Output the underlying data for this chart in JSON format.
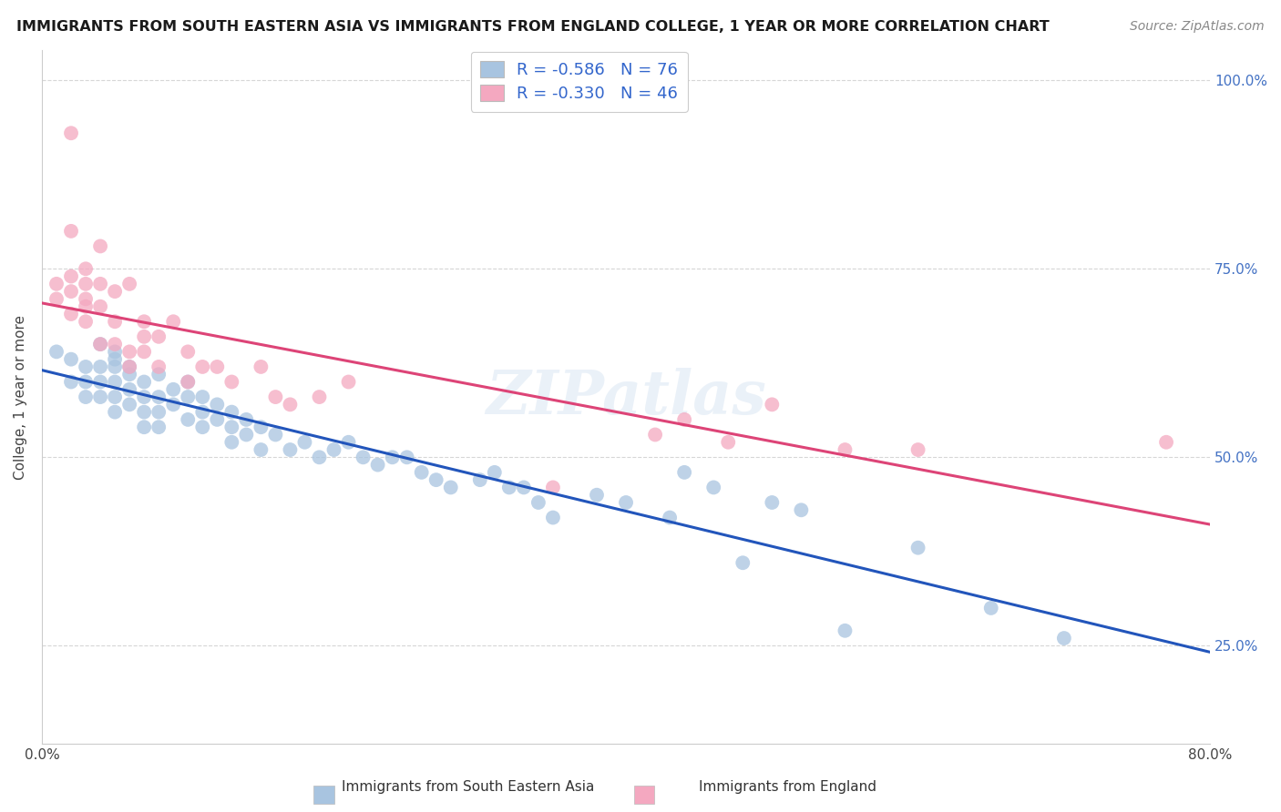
{
  "title": "IMMIGRANTS FROM SOUTH EASTERN ASIA VS IMMIGRANTS FROM ENGLAND COLLEGE, 1 YEAR OR MORE CORRELATION CHART",
  "source": "Source: ZipAtlas.com",
  "ylabel": "College, 1 year or more",
  "blue_R": -0.586,
  "blue_N": 76,
  "pink_R": -0.33,
  "pink_N": 46,
  "blue_color": "#a8c4e0",
  "pink_color": "#f4a8c0",
  "blue_line_color": "#2255bb",
  "pink_line_color": "#dd4477",
  "legend_label_blue": "Immigrants from South Eastern Asia",
  "legend_label_pink": "Immigrants from England",
  "blue_scatter_x": [
    0.01,
    0.02,
    0.02,
    0.03,
    0.03,
    0.03,
    0.04,
    0.04,
    0.04,
    0.04,
    0.05,
    0.05,
    0.05,
    0.05,
    0.05,
    0.05,
    0.06,
    0.06,
    0.06,
    0.06,
    0.07,
    0.07,
    0.07,
    0.07,
    0.08,
    0.08,
    0.08,
    0.08,
    0.09,
    0.09,
    0.1,
    0.1,
    0.1,
    0.11,
    0.11,
    0.11,
    0.12,
    0.12,
    0.13,
    0.13,
    0.13,
    0.14,
    0.14,
    0.15,
    0.15,
    0.16,
    0.17,
    0.18,
    0.19,
    0.2,
    0.21,
    0.22,
    0.23,
    0.24,
    0.25,
    0.26,
    0.27,
    0.28,
    0.3,
    0.31,
    0.32,
    0.33,
    0.34,
    0.35,
    0.38,
    0.4,
    0.43,
    0.44,
    0.46,
    0.48,
    0.5,
    0.52,
    0.55,
    0.6,
    0.65,
    0.7
  ],
  "blue_scatter_y": [
    0.64,
    0.63,
    0.6,
    0.62,
    0.6,
    0.58,
    0.65,
    0.62,
    0.6,
    0.58,
    0.64,
    0.62,
    0.6,
    0.58,
    0.56,
    0.63,
    0.61,
    0.59,
    0.57,
    0.62,
    0.6,
    0.58,
    0.56,
    0.54,
    0.61,
    0.58,
    0.56,
    0.54,
    0.59,
    0.57,
    0.6,
    0.58,
    0.55,
    0.58,
    0.56,
    0.54,
    0.57,
    0.55,
    0.56,
    0.54,
    0.52,
    0.55,
    0.53,
    0.54,
    0.51,
    0.53,
    0.51,
    0.52,
    0.5,
    0.51,
    0.52,
    0.5,
    0.49,
    0.5,
    0.5,
    0.48,
    0.47,
    0.46,
    0.47,
    0.48,
    0.46,
    0.46,
    0.44,
    0.42,
    0.45,
    0.44,
    0.42,
    0.48,
    0.46,
    0.36,
    0.44,
    0.43,
    0.27,
    0.38,
    0.3,
    0.26
  ],
  "pink_scatter_x": [
    0.01,
    0.01,
    0.02,
    0.02,
    0.02,
    0.02,
    0.02,
    0.03,
    0.03,
    0.03,
    0.03,
    0.03,
    0.04,
    0.04,
    0.04,
    0.04,
    0.05,
    0.05,
    0.05,
    0.06,
    0.06,
    0.06,
    0.07,
    0.07,
    0.07,
    0.08,
    0.08,
    0.09,
    0.1,
    0.1,
    0.11,
    0.12,
    0.13,
    0.15,
    0.16,
    0.17,
    0.19,
    0.21,
    0.35,
    0.42,
    0.44,
    0.47,
    0.5,
    0.55,
    0.6,
    0.77
  ],
  "pink_scatter_y": [
    0.73,
    0.71,
    0.74,
    0.69,
    0.72,
    0.8,
    0.93,
    0.68,
    0.71,
    0.73,
    0.75,
    0.7,
    0.7,
    0.73,
    0.65,
    0.78,
    0.68,
    0.72,
    0.65,
    0.64,
    0.62,
    0.73,
    0.66,
    0.68,
    0.64,
    0.66,
    0.62,
    0.68,
    0.64,
    0.6,
    0.62,
    0.62,
    0.6,
    0.62,
    0.58,
    0.57,
    0.58,
    0.6,
    0.46,
    0.53,
    0.55,
    0.52,
    0.57,
    0.51,
    0.51,
    0.52
  ],
  "watermark": "ZIPatlas",
  "background_color": "#ffffff",
  "grid_color": "#cccccc",
  "xlim": [
    0.0,
    0.8
  ],
  "ylim": [
    0.12,
    1.04
  ],
  "x_tick_positions": [
    0.0,
    0.16,
    0.32,
    0.48,
    0.64,
    0.8
  ],
  "y_tick_positions": [
    0.25,
    0.5,
    0.75,
    1.0
  ],
  "title_fontsize": 11.5,
  "source_fontsize": 10,
  "axis_fontsize": 11
}
